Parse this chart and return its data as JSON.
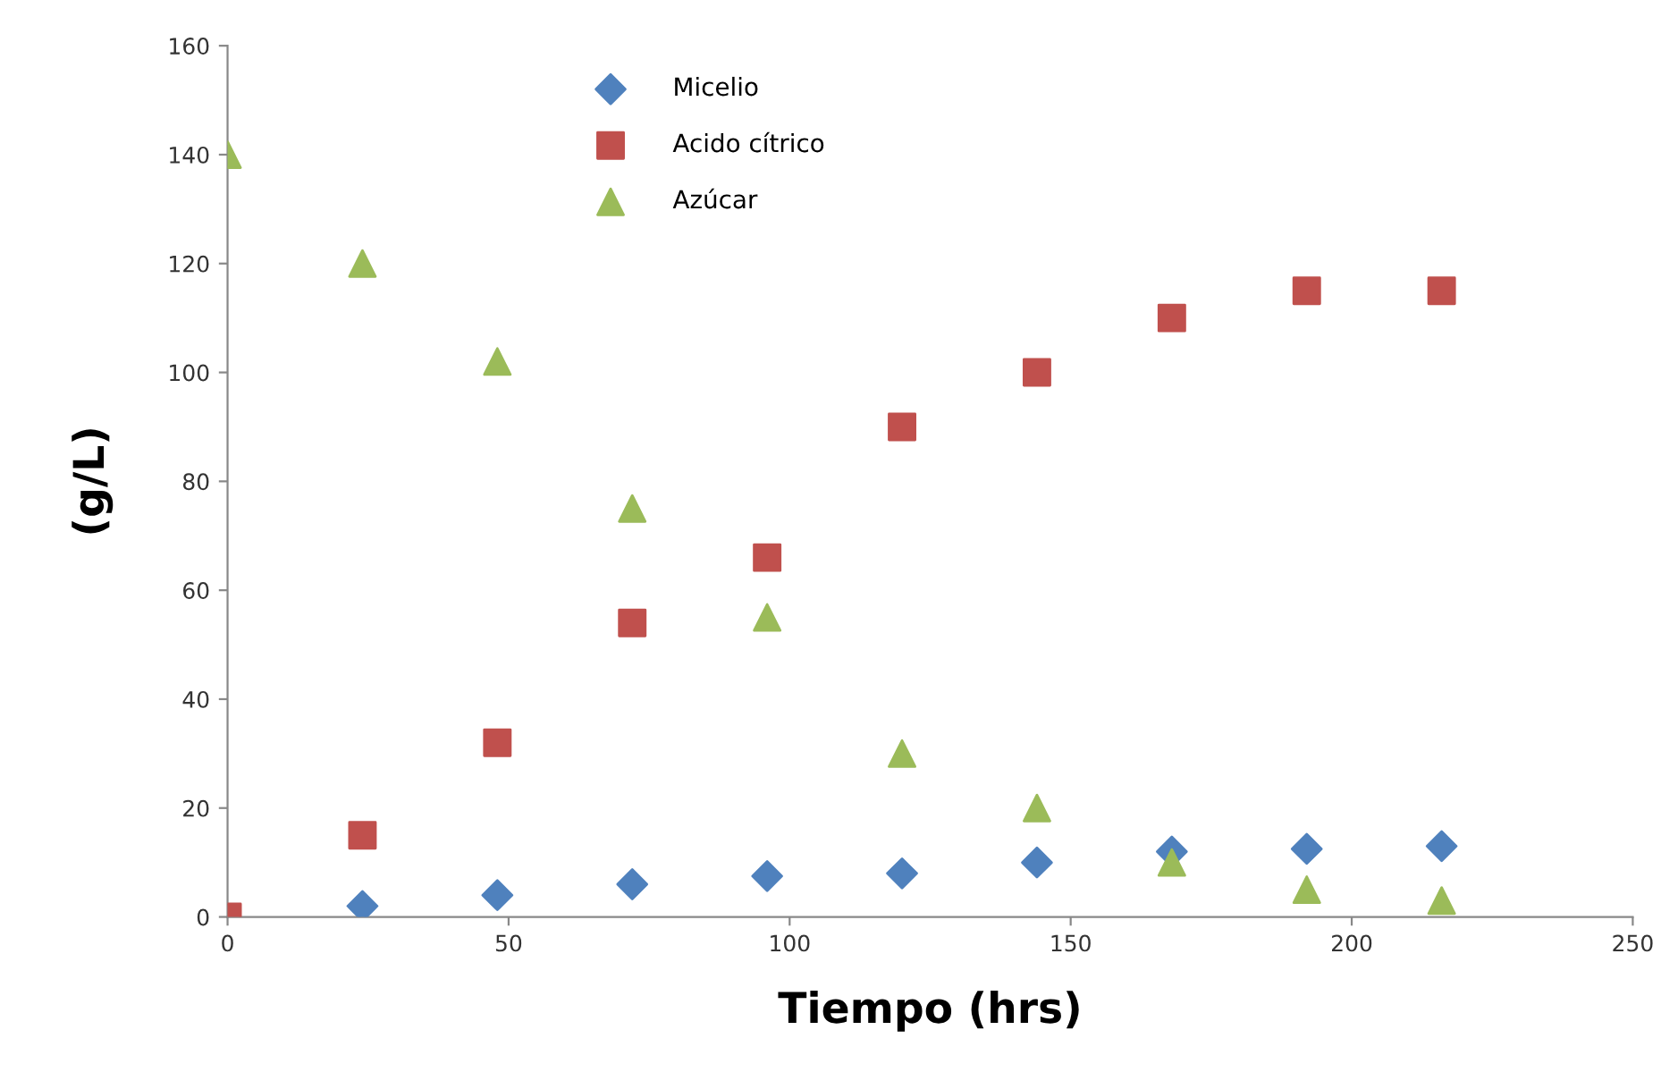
{
  "chart_data": {
    "type": "scatter",
    "xlabel": "Tiempo (hrs)",
    "ylabel": "(g/L)",
    "x": [
      0,
      24,
      48,
      72,
      96,
      120,
      144,
      168,
      192,
      216
    ],
    "series": [
      {
        "name": "Micelio",
        "color": "#4f81bd",
        "marker": "diamond",
        "values": [
          null,
          2,
          4,
          6,
          7.5,
          8,
          10,
          12,
          12.5,
          13
        ]
      },
      {
        "name": "Acido cítrico",
        "color": "#c0504d",
        "marker": "square",
        "values": [
          0,
          15,
          32,
          54,
          66,
          90,
          100,
          110,
          115,
          115
        ]
      },
      {
        "name": "Azúcar",
        "color": "#9bbb59",
        "marker": "triangle",
        "values": [
          140,
          120,
          102,
          75,
          55,
          30,
          20,
          10,
          5,
          3
        ]
      }
    ],
    "xlim": [
      0,
      250
    ],
    "xticks": [
      0,
      50,
      100,
      150,
      200,
      250
    ],
    "ylim": [
      0,
      160
    ],
    "yticks": [
      0,
      20,
      40,
      60,
      80,
      100,
      120,
      140,
      160
    ],
    "grid": false,
    "legend": "top"
  }
}
